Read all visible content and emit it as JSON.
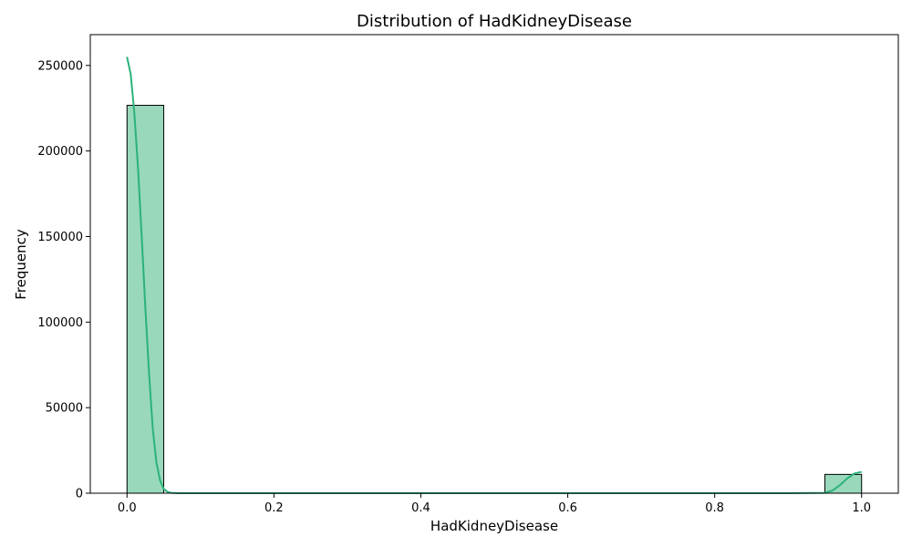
{
  "chart_data": {
    "type": "bar",
    "title": "Distribution of HadKidneyDisease",
    "xlabel": "HadKidneyDisease",
    "ylabel": "Frequency",
    "xlim": [
      -0.05,
      1.05
    ],
    "ylim": [
      0,
      268000
    ],
    "x_ticks": [
      0.0,
      0.2,
      0.4,
      0.6,
      0.8,
      1.0
    ],
    "x_tick_labels": [
      "0.0",
      "0.2",
      "0.4",
      "0.6",
      "0.8",
      "1.0"
    ],
    "y_ticks": [
      0,
      50000,
      100000,
      150000,
      200000,
      250000
    ],
    "y_tick_labels": [
      "0",
      "50000",
      "100000",
      "150000",
      "200000",
      "250000"
    ],
    "grid": false,
    "bins": [
      {
        "x_start": 0.0,
        "x_end": 0.05,
        "count": 226700
      },
      {
        "x_start": 0.95,
        "x_end": 1.0,
        "count": 11000
      }
    ],
    "kde": {
      "x": [
        0.0,
        0.005,
        0.01,
        0.015,
        0.02,
        0.025,
        0.03,
        0.035,
        0.04,
        0.045,
        0.05,
        0.055,
        0.06,
        0.07,
        0.08,
        0.1,
        0.2,
        0.4,
        0.6,
        0.8,
        0.9,
        0.95,
        0.96,
        0.97,
        0.98,
        0.99,
        1.0
      ],
      "y": [
        255000,
        245000,
        222000,
        190000,
        150000,
        108000,
        70000,
        38000,
        18000,
        7500,
        2500,
        800,
        200,
        20,
        0,
        0,
        0,
        0,
        0,
        0,
        0,
        200,
        1500,
        4500,
        8500,
        11500,
        12500
      ]
    },
    "colors": {
      "bar_fill": "#99d8ba",
      "bar_edge": "#000000",
      "kde_line": "#2bb27a"
    }
  }
}
